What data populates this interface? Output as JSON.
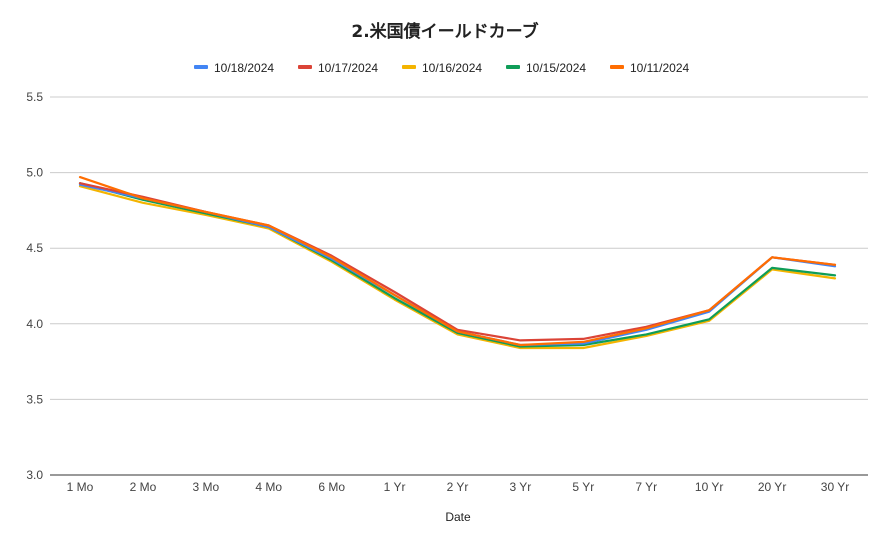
{
  "chart_data": {
    "type": "line",
    "title": "2.米国債イールドカーブ",
    "xlabel": "Date",
    "ylabel": "",
    "ylim": [
      3.0,
      5.5
    ],
    "yticks": [
      "3.0",
      "3.5",
      "4.0",
      "4.5",
      "5.0",
      "5.5"
    ],
    "grid": true,
    "legend_position": "top",
    "categories": [
      "1 Mo",
      "2 Mo",
      "3 Mo",
      "4 Mo",
      "6 Mo",
      "1 Yr",
      "2 Yr",
      "3 Yr",
      "5 Yr",
      "7 Yr",
      "10 Yr",
      "20 Yr",
      "30 Yr"
    ],
    "series": [
      {
        "name": "10/18/2024",
        "color": "#4285f4",
        "values": [
          4.92,
          4.83,
          4.74,
          4.64,
          4.43,
          4.19,
          3.95,
          3.86,
          3.87,
          3.96,
          4.08,
          4.44,
          4.38
        ]
      },
      {
        "name": "10/17/2024",
        "color": "#db4437",
        "values": [
          4.93,
          4.84,
          4.74,
          4.65,
          4.45,
          4.21,
          3.96,
          3.89,
          3.9,
          3.98,
          4.09,
          4.44,
          4.39
        ]
      },
      {
        "name": "10/16/2024",
        "color": "#f4b400",
        "values": [
          4.91,
          4.8,
          4.72,
          4.63,
          4.41,
          4.16,
          3.93,
          3.84,
          3.84,
          3.92,
          4.02,
          4.36,
          4.3
        ]
      },
      {
        "name": "10/15/2024",
        "color": "#0f9d58",
        "values": [
          4.93,
          4.82,
          4.73,
          4.64,
          4.42,
          4.17,
          3.94,
          3.85,
          3.86,
          3.93,
          4.03,
          4.37,
          4.32
        ]
      },
      {
        "name": "10/11/2024",
        "color": "#ff6d01",
        "values": [
          4.97,
          4.83,
          4.74,
          4.65,
          4.44,
          4.19,
          3.95,
          3.86,
          3.88,
          3.97,
          4.09,
          4.44,
          4.39
        ]
      }
    ]
  }
}
